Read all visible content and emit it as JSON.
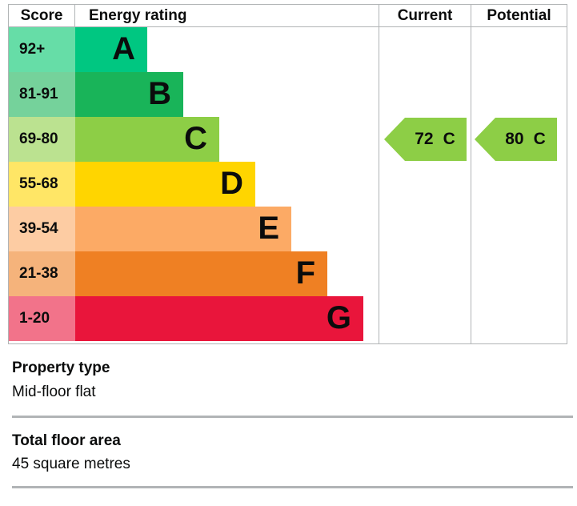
{
  "chart_data": {
    "type": "epc-energy-rating-bar",
    "columns": {
      "score": "Score",
      "energy_rating": "Energy rating",
      "current": "Current",
      "potential": "Potential"
    },
    "bands": [
      {
        "letter": "A",
        "score": "92+",
        "color": "#00c781",
        "tint": "#66dda7"
      },
      {
        "letter": "B",
        "score": "81-91",
        "color": "#19b459",
        "tint": "#75d29b"
      },
      {
        "letter": "C",
        "score": "69-80",
        "color": "#8dce46",
        "tint": "#bbe290"
      },
      {
        "letter": "D",
        "score": "55-68",
        "color": "#ffd500",
        "tint": "#ffe666"
      },
      {
        "letter": "E",
        "score": "39-54",
        "color": "#fcaa65",
        "tint": "#fdcca3"
      },
      {
        "letter": "F",
        "score": "21-38",
        "color": "#ef8023",
        "tint": "#f5b37b"
      },
      {
        "letter": "G",
        "score": "1-20",
        "color": "#e9153b",
        "tint": "#f2738a"
      }
    ],
    "current": {
      "value": "72",
      "letter": "C",
      "color": "#8dce46"
    },
    "potential": {
      "value": "80",
      "letter": "C",
      "color": "#8dce46"
    }
  },
  "details": {
    "property_type": {
      "label": "Property type",
      "value": "Mid-floor flat"
    },
    "total_floor_area": {
      "label": "Total floor area",
      "value": "45 square metres"
    }
  },
  "colors": {
    "border": "#b1b4b6",
    "text": "#0b0c0c"
  }
}
